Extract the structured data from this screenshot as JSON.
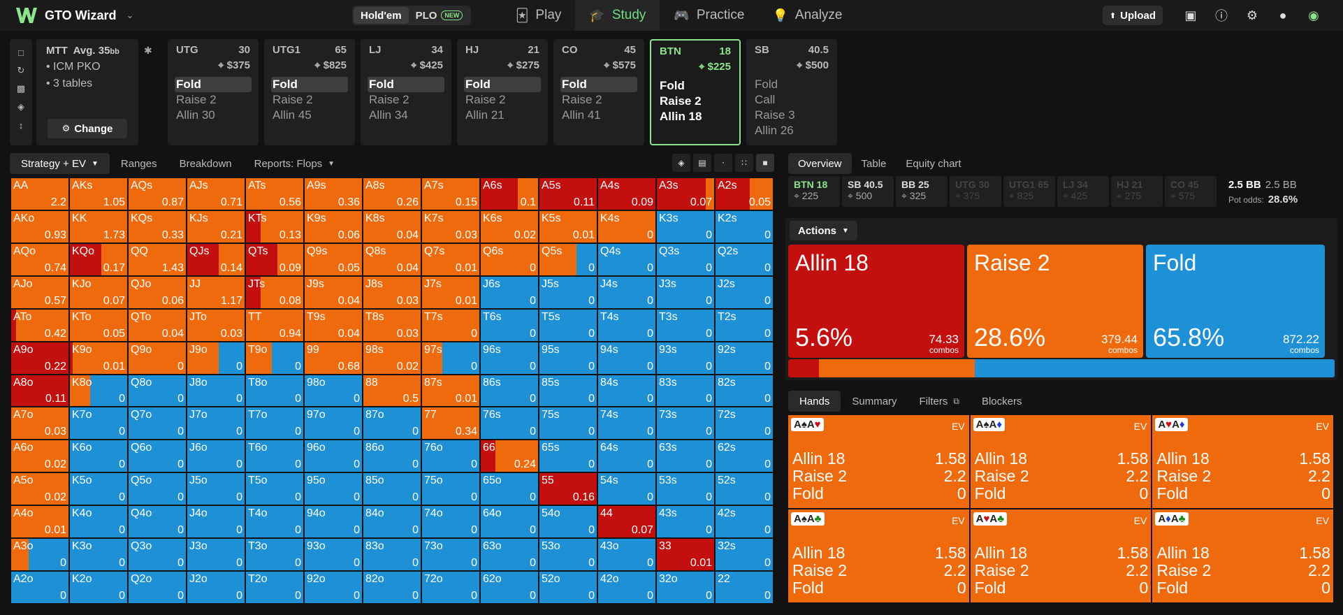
{
  "app": {
    "name": "GTO Wizard",
    "nav": [
      {
        "label": "Play",
        "icon": "cards-icon"
      },
      {
        "label": "Study",
        "icon": "study-icon"
      },
      {
        "label": "Practice",
        "icon": "gamepad-icon"
      },
      {
        "label": "Analyze",
        "icon": "bulb-icon"
      }
    ],
    "game_modes": [
      {
        "label": "Hold'em"
      },
      {
        "label": "PLO",
        "badge": "NEW"
      }
    ],
    "upload_label": "Upload"
  },
  "colors": {
    "allin": "#c30f0e",
    "raise": "#ef6a0c",
    "fold": "#1e90d6",
    "hero": "#8be68b"
  },
  "mtt": {
    "title": "MTT",
    "avg": "Avg. 35",
    "avg_unit": "bb",
    "items": [
      "ICM PKO",
      "3 tables"
    ],
    "change_label": "Change"
  },
  "seats": [
    {
      "pos": "UTG",
      "stack": "30",
      "bounty": "$375",
      "actions": [
        "Fold",
        "Raise 2",
        "Allin 30"
      ],
      "sel": 0
    },
    {
      "pos": "UTG1",
      "stack": "65",
      "bounty": "$825",
      "actions": [
        "Fold",
        "Raise 2",
        "Allin 45"
      ],
      "sel": 0
    },
    {
      "pos": "LJ",
      "stack": "34",
      "bounty": "$425",
      "actions": [
        "Fold",
        "Raise 2",
        "Allin 34"
      ],
      "sel": 0
    },
    {
      "pos": "HJ",
      "stack": "21",
      "bounty": "$275",
      "actions": [
        "Fold",
        "Raise 2",
        "Allin 21"
      ],
      "sel": 0
    },
    {
      "pos": "CO",
      "stack": "45",
      "bounty": "$575",
      "actions": [
        "Fold",
        "Raise 2",
        "Allin 41"
      ],
      "sel": 0
    },
    {
      "pos": "BTN",
      "stack": "18",
      "bounty": "$225",
      "actions": [
        "Fold",
        "Raise 2",
        "Allin 18"
      ],
      "sel": -1,
      "hero": true
    },
    {
      "pos": "SB",
      "stack": "40.5",
      "bounty": "$500",
      "actions": [
        "Fold",
        "Call",
        "Raise 3",
        "Allin 26"
      ],
      "sel": -1
    }
  ],
  "grid_tabs": [
    "Strategy + EV",
    "Ranges",
    "Breakdown",
    "Reports: Flops"
  ],
  "right_tabs": [
    "Overview",
    "Table",
    "Equity chart"
  ],
  "stacks": [
    {
      "l": "BTN 18",
      "v": "225",
      "hero": true
    },
    {
      "l": "SB 40.5",
      "v": "500"
    },
    {
      "l": "BB 25",
      "v": "325"
    },
    {
      "l": "UTG 30",
      "v": "375",
      "dim": true
    },
    {
      "l": "UTG1 65",
      "v": "825",
      "dim": true
    },
    {
      "l": "LJ 34",
      "v": "425",
      "dim": true
    },
    {
      "l": "HJ 21",
      "v": "275",
      "dim": true
    },
    {
      "l": "CO 45",
      "v": "575",
      "dim": true
    }
  ],
  "pot": {
    "pot_label": "2.5 BB",
    "pot_value": "2.5 BB",
    "odds_label": "Pot odds:",
    "odds_value": "28.6%"
  },
  "actions_label": "Actions",
  "big_actions": [
    {
      "name": "Allin 18",
      "pct": "5.6%",
      "combos": "74.33",
      "unit": "combos",
      "color": "#c30f0e",
      "freq": 5.6
    },
    {
      "name": "Raise 2",
      "pct": "28.6%",
      "combos": "379.44",
      "unit": "combos",
      "color": "#ef6a0c",
      "freq": 28.6
    },
    {
      "name": "Fold",
      "pct": "65.8%",
      "combos": "872.22",
      "unit": "combos",
      "color": "#1e90d6",
      "freq": 65.8
    }
  ],
  "hand_tabs": [
    "Hands",
    "Summary",
    "Filters",
    "Blockers"
  ],
  "combos": [
    {
      "cards": [
        [
          "A",
          "♠",
          "s-sp"
        ],
        [
          "A",
          "♥",
          "s-ht"
        ]
      ]
    },
    {
      "cards": [
        [
          "A",
          "♠",
          "s-sp"
        ],
        [
          "A",
          "♦",
          "s-dm"
        ]
      ]
    },
    {
      "cards": [
        [
          "A",
          "♥",
          "s-ht"
        ],
        [
          "A",
          "♦",
          "s-dm"
        ]
      ]
    },
    {
      "cards": [
        [
          "A",
          "♠",
          "s-sp"
        ],
        [
          "A",
          "♣",
          "s-cl g"
        ]
      ]
    },
    {
      "cards": [
        [
          "A",
          "♥",
          "s-ht"
        ],
        [
          "A",
          "♣",
          "s-cl g"
        ]
      ]
    },
    {
      "cards": [
        [
          "A",
          "♦",
          "s-dm"
        ],
        [
          "A",
          "♣",
          "s-cl g"
        ]
      ]
    }
  ],
  "combo_rows": [
    [
      "Allin 18",
      "1.58"
    ],
    [
      "Raise 2",
      "2.2"
    ],
    [
      "Fold",
      "0"
    ]
  ],
  "combo_ev_label": "EV",
  "matrix": [
    [
      [
        "AA",
        "2.2",
        0,
        1,
        0
      ],
      [
        "AKs",
        "1.05",
        0,
        1,
        0
      ],
      [
        "AQs",
        "0.87",
        0,
        1,
        0
      ],
      [
        "AJs",
        "0.71",
        0,
        1,
        0
      ],
      [
        "ATs",
        "0.56",
        0,
        1,
        0
      ],
      [
        "A9s",
        "0.36",
        0,
        1,
        0
      ],
      [
        "A8s",
        "0.26",
        0,
        1,
        0
      ],
      [
        "A7s",
        "0.15",
        0,
        1,
        0
      ],
      [
        "A6s",
        "0.1",
        0.65,
        0.35,
        0
      ],
      [
        "A5s",
        "0.11",
        1,
        0,
        0
      ],
      [
        "A4s",
        "0.09",
        1,
        0,
        0
      ],
      [
        "A3s",
        "0.07",
        0.85,
        0.15,
        0
      ],
      [
        "A2s",
        "0.05",
        0.6,
        0.4,
        0
      ]
    ],
    [
      [
        "AKo",
        "0.93",
        0,
        1,
        0
      ],
      [
        "KK",
        "1.73",
        0,
        1,
        0
      ],
      [
        "KQs",
        "0.33",
        0,
        1,
        0
      ],
      [
        "KJs",
        "0.21",
        0,
        1,
        0
      ],
      [
        "KTs",
        "0.13",
        0.25,
        0.75,
        0
      ],
      [
        "K9s",
        "0.06",
        0,
        1,
        0
      ],
      [
        "K8s",
        "0.04",
        0,
        1,
        0
      ],
      [
        "K7s",
        "0.03",
        0,
        1,
        0
      ],
      [
        "K6s",
        "0.02",
        0,
        1,
        0
      ],
      [
        "K5s",
        "0.01",
        0,
        1,
        0
      ],
      [
        "K4s",
        "0",
        0,
        1,
        0
      ],
      [
        "K3s",
        "0",
        0,
        0,
        1
      ],
      [
        "K2s",
        "0",
        0,
        0,
        1
      ]
    ],
    [
      [
        "AQo",
        "0.74",
        0,
        1,
        0
      ],
      [
        "KQo",
        "0.17",
        0.55,
        0.45,
        0
      ],
      [
        "QQ",
        "1.43",
        0,
        1,
        0
      ],
      [
        "QJs",
        "0.14",
        0.55,
        0.45,
        0
      ],
      [
        "QTs",
        "0.09",
        0.55,
        0.45,
        0
      ],
      [
        "Q9s",
        "0.05",
        0,
        1,
        0
      ],
      [
        "Q8s",
        "0.04",
        0,
        1,
        0
      ],
      [
        "Q7s",
        "0.01",
        0,
        1,
        0
      ],
      [
        "Q6s",
        "0",
        0,
        1,
        0
      ],
      [
        "Q5s",
        "0",
        0,
        0.65,
        0.35
      ],
      [
        "Q4s",
        "0",
        0,
        0,
        1
      ],
      [
        "Q3s",
        "0",
        0,
        0,
        1
      ],
      [
        "Q2s",
        "0",
        0,
        0,
        1
      ]
    ],
    [
      [
        "AJo",
        "0.57",
        0,
        1,
        0
      ],
      [
        "KJo",
        "0.07",
        0,
        1,
        0
      ],
      [
        "QJo",
        "0.06",
        0,
        1,
        0
      ],
      [
        "JJ",
        "1.17",
        0,
        1,
        0
      ],
      [
        "JTs",
        "0.08",
        0.25,
        0.75,
        0
      ],
      [
        "J9s",
        "0.04",
        0,
        1,
        0
      ],
      [
        "J8s",
        "0.03",
        0,
        1,
        0
      ],
      [
        "J7s",
        "0.01",
        0,
        1,
        0
      ],
      [
        "J6s",
        "0",
        0,
        0,
        1
      ],
      [
        "J5s",
        "0",
        0,
        0,
        1
      ],
      [
        "J4s",
        "0",
        0,
        0,
        1
      ],
      [
        "J3s",
        "0",
        0,
        0,
        1
      ],
      [
        "J2s",
        "0",
        0,
        0,
        1
      ]
    ],
    [
      [
        "ATo",
        "0.42",
        0.08,
        0.92,
        0
      ],
      [
        "KTo",
        "0.05",
        0,
        1,
        0
      ],
      [
        "QTo",
        "0.04",
        0,
        1,
        0
      ],
      [
        "JTo",
        "0.03",
        0,
        1,
        0
      ],
      [
        "TT",
        "0.94",
        0,
        1,
        0
      ],
      [
        "T9s",
        "0.04",
        0,
        1,
        0
      ],
      [
        "T8s",
        "0.03",
        0,
        1,
        0
      ],
      [
        "T7s",
        "0",
        0,
        1,
        0
      ],
      [
        "T6s",
        "0",
        0,
        0,
        1
      ],
      [
        "T5s",
        "0",
        0,
        0,
        1
      ],
      [
        "T4s",
        "0",
        0,
        0,
        1
      ],
      [
        "T3s",
        "0",
        0,
        0,
        1
      ],
      [
        "T2s",
        "0",
        0,
        0,
        1
      ]
    ],
    [
      [
        "A9o",
        "0.22",
        1,
        0,
        0
      ],
      [
        "K9o",
        "0.01",
        0.05,
        0.95,
        0
      ],
      [
        "Q9o",
        "0",
        0,
        1,
        0
      ],
      [
        "J9o",
        "0",
        0,
        0.55,
        0.45
      ],
      [
        "T9o",
        "0",
        0,
        0.45,
        0.55
      ],
      [
        "99",
        "0.68",
        0,
        1,
        0
      ],
      [
        "98s",
        "0.02",
        0,
        1,
        0
      ],
      [
        "97s",
        "0",
        0,
        0.35,
        0.65
      ],
      [
        "96s",
        "0",
        0,
        0,
        1
      ],
      [
        "95s",
        "0",
        0,
        0,
        1
      ],
      [
        "94s",
        "0",
        0,
        0,
        1
      ],
      [
        "93s",
        "0",
        0,
        0,
        1
      ],
      [
        "92s",
        "0",
        0,
        0,
        1
      ]
    ],
    [
      [
        "A8o",
        "0.11",
        1,
        0,
        0
      ],
      [
        "K8o",
        "0",
        0,
        0.35,
        0.65
      ],
      [
        "Q8o",
        "0",
        0,
        0,
        1
      ],
      [
        "J8o",
        "0",
        0,
        0,
        1
      ],
      [
        "T8o",
        "0",
        0,
        0,
        1
      ],
      [
        "98o",
        "0",
        0,
        0,
        1
      ],
      [
        "88",
        "0.5",
        0,
        1,
        0
      ],
      [
        "87s",
        "0.01",
        0,
        1,
        0
      ],
      [
        "86s",
        "0",
        0,
        0,
        1
      ],
      [
        "85s",
        "0",
        0,
        0,
        1
      ],
      [
        "84s",
        "0",
        0,
        0,
        1
      ],
      [
        "83s",
        "0",
        0,
        0,
        1
      ],
      [
        "82s",
        "0",
        0,
        0,
        1
      ]
    ],
    [
      [
        "A7o",
        "0.03",
        0,
        1,
        0
      ],
      [
        "K7o",
        "0",
        0,
        0,
        1
      ],
      [
        "Q7o",
        "0",
        0,
        0,
        1
      ],
      [
        "J7o",
        "0",
        0,
        0,
        1
      ],
      [
        "T7o",
        "0",
        0,
        0,
        1
      ],
      [
        "97o",
        "0",
        0,
        0,
        1
      ],
      [
        "87o",
        "0",
        0,
        0,
        1
      ],
      [
        "77",
        "0.34",
        0,
        1,
        0
      ],
      [
        "76s",
        "0",
        0,
        0,
        1
      ],
      [
        "75s",
        "0",
        0,
        0,
        1
      ],
      [
        "74s",
        "0",
        0,
        0,
        1
      ],
      [
        "73s",
        "0",
        0,
        0,
        1
      ],
      [
        "72s",
        "0",
        0,
        0,
        1
      ]
    ],
    [
      [
        "A6o",
        "0.02",
        0,
        1,
        0
      ],
      [
        "K6o",
        "0",
        0,
        0,
        1
      ],
      [
        "Q6o",
        "0",
        0,
        0,
        1
      ],
      [
        "J6o",
        "0",
        0,
        0,
        1
      ],
      [
        "T6o",
        "0",
        0,
        0,
        1
      ],
      [
        "96o",
        "0",
        0,
        0,
        1
      ],
      [
        "86o",
        "0",
        0,
        0,
        1
      ],
      [
        "76o",
        "0",
        0,
        0,
        1
      ],
      [
        "66",
        "0.24",
        0.25,
        0.75,
        0
      ],
      [
        "65s",
        "0",
        0,
        0,
        1
      ],
      [
        "64s",
        "0",
        0,
        0,
        1
      ],
      [
        "63s",
        "0",
        0,
        0,
        1
      ],
      [
        "62s",
        "0",
        0,
        0,
        1
      ]
    ],
    [
      [
        "A5o",
        "0.02",
        0,
        1,
        0
      ],
      [
        "K5o",
        "0",
        0,
        0,
        1
      ],
      [
        "Q5o",
        "0",
        0,
        0,
        1
      ],
      [
        "J5o",
        "0",
        0,
        0,
        1
      ],
      [
        "T5o",
        "0",
        0,
        0,
        1
      ],
      [
        "95o",
        "0",
        0,
        0,
        1
      ],
      [
        "85o",
        "0",
        0,
        0,
        1
      ],
      [
        "75o",
        "0",
        0,
        0,
        1
      ],
      [
        "65o",
        "0",
        0,
        0,
        1
      ],
      [
        "55",
        "0.16",
        1,
        0,
        0
      ],
      [
        "54s",
        "0",
        0,
        0,
        1
      ],
      [
        "53s",
        "0",
        0,
        0,
        1
      ],
      [
        "52s",
        "0",
        0,
        0,
        1
      ]
    ],
    [
      [
        "A4o",
        "0.01",
        0,
        1,
        0
      ],
      [
        "K4o",
        "0",
        0,
        0,
        1
      ],
      [
        "Q4o",
        "0",
        0,
        0,
        1
      ],
      [
        "J4o",
        "0",
        0,
        0,
        1
      ],
      [
        "T4o",
        "0",
        0,
        0,
        1
      ],
      [
        "94o",
        "0",
        0,
        0,
        1
      ],
      [
        "84o",
        "0",
        0,
        0,
        1
      ],
      [
        "74o",
        "0",
        0,
        0,
        1
      ],
      [
        "64o",
        "0",
        0,
        0,
        1
      ],
      [
        "54o",
        "0",
        0,
        0,
        1
      ],
      [
        "44",
        "0.07",
        1,
        0,
        0
      ],
      [
        "43s",
        "0",
        0,
        0,
        1
      ],
      [
        "42s",
        "0",
        0,
        0,
        1
      ]
    ],
    [
      [
        "A3o",
        "0",
        0,
        0.3,
        0.7
      ],
      [
        "K3o",
        "0",
        0,
        0,
        1
      ],
      [
        "Q3o",
        "0",
        0,
        0,
        1
      ],
      [
        "J3o",
        "0",
        0,
        0,
        1
      ],
      [
        "T3o",
        "0",
        0,
        0,
        1
      ],
      [
        "93o",
        "0",
        0,
        0,
        1
      ],
      [
        "83o",
        "0",
        0,
        0,
        1
      ],
      [
        "73o",
        "0",
        0,
        0,
        1
      ],
      [
        "63o",
        "0",
        0,
        0,
        1
      ],
      [
        "53o",
        "0",
        0,
        0,
        1
      ],
      [
        "43o",
        "0",
        0,
        0,
        1
      ],
      [
        "33",
        "0.01",
        1,
        0,
        0
      ],
      [
        "32s",
        "0",
        0,
        0,
        1
      ]
    ],
    [
      [
        "A2o",
        "0",
        0,
        0,
        1
      ],
      [
        "K2o",
        "0",
        0,
        0,
        1
      ],
      [
        "Q2o",
        "0",
        0,
        0,
        1
      ],
      [
        "J2o",
        "0",
        0,
        0,
        1
      ],
      [
        "T2o",
        "0",
        0,
        0,
        1
      ],
      [
        "92o",
        "0",
        0,
        0,
        1
      ],
      [
        "82o",
        "0",
        0,
        0,
        1
      ],
      [
        "72o",
        "0",
        0,
        0,
        1
      ],
      [
        "62o",
        "0",
        0,
        0,
        1
      ],
      [
        "52o",
        "0",
        0,
        0,
        1
      ],
      [
        "42o",
        "0",
        0,
        0,
        1
      ],
      [
        "32o",
        "0",
        0,
        0,
        1
      ],
      [
        "22",
        "0",
        0,
        0,
        1
      ]
    ]
  ]
}
